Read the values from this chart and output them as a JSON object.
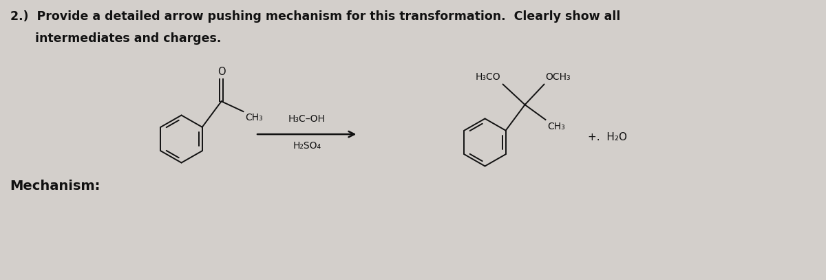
{
  "bg_color": "#d3cfcb",
  "title_line1": "2.)  Provide a detailed arrow pushing mechanism for this transformation.  Clearly show all",
  "title_line2": "      intermediates and charges.",
  "mechanism_label": "Mechanism:",
  "title_fontsize": 12.5,
  "mechanism_fontsize": 14,
  "text_color": "#111111",
  "structure_color": "#111111",
  "arrow_color": "#111111",
  "reagents_above": "H₃C–OH",
  "reagents_below": "H₂SO₄",
  "plus_water": "+.  H₂O",
  "product_top_left": "H₃CO",
  "product_top_right": "OCH₃",
  "product_bottom": "CH₃",
  "reactant_ch3": "CH₃"
}
